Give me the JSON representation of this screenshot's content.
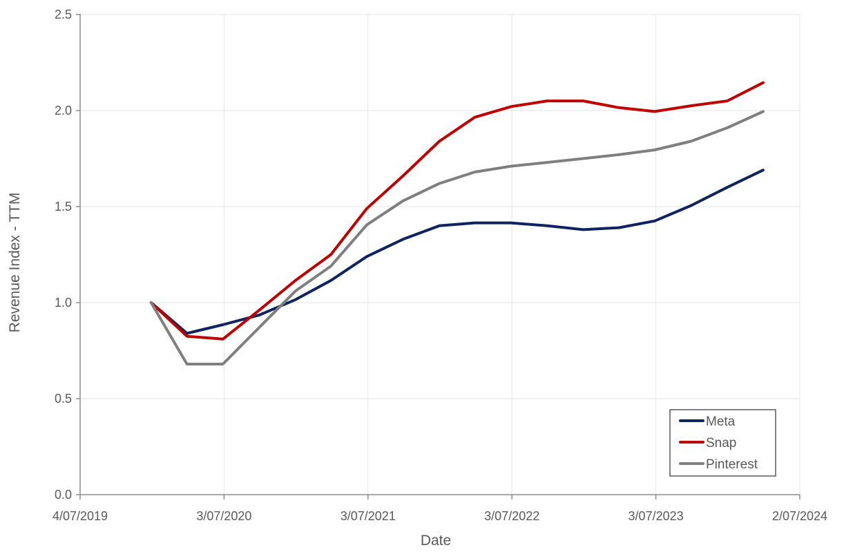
{
  "chart_data": {
    "type": "line",
    "title": "",
    "xlabel": "Date",
    "ylabel": "Revenue Index - TTM",
    "x_axis": {
      "type": "date",
      "min": "2019-07-04",
      "max": "2024-07-02",
      "ticks": [
        {
          "date": "2019-07-04",
          "label": "4/07/2019"
        },
        {
          "date": "2020-07-03",
          "label": "3/07/2020"
        },
        {
          "date": "2021-07-03",
          "label": "3/07/2021"
        },
        {
          "date": "2022-07-03",
          "label": "3/07/2022"
        },
        {
          "date": "2023-07-03",
          "label": "3/07/2023"
        },
        {
          "date": "2024-07-02",
          "label": "2/07/2024"
        }
      ]
    },
    "y_axis": {
      "min": 0,
      "max": 2.5,
      "ticks": [
        0,
        0.5,
        1,
        1.5,
        2,
        2.5
      ],
      "tick_labels": [
        "0.0",
        "0.5",
        "1.0",
        "1.5",
        "2.0",
        "2.5"
      ]
    },
    "grid": true,
    "legend": {
      "position": "bottom-right"
    },
    "x": [
      "2019-12-31",
      "2020-03-31",
      "2020-06-30",
      "2020-09-30",
      "2020-12-31",
      "2021-03-31",
      "2021-06-30",
      "2021-09-30",
      "2021-12-31",
      "2022-03-31",
      "2022-06-30",
      "2022-09-30",
      "2022-12-31",
      "2023-03-31",
      "2023-06-30",
      "2023-09-30",
      "2023-12-31",
      "2024-03-31"
    ],
    "series": [
      {
        "name": "Meta",
        "color": "#0d2461",
        "values": [
          1.0,
          0.84,
          0.885,
          0.935,
          1.015,
          1.115,
          1.24,
          1.33,
          1.4,
          1.415,
          1.415,
          1.4,
          1.38,
          1.39,
          1.425,
          1.505,
          1.6,
          1.69
        ]
      },
      {
        "name": "Snap",
        "color": "#c00000",
        "values": [
          1.0,
          0.825,
          0.81,
          0.96,
          1.115,
          1.25,
          1.49,
          1.66,
          1.84,
          1.965,
          2.02,
          2.05,
          2.05,
          2.015,
          1.995,
          2.025,
          2.05,
          2.145
        ]
      },
      {
        "name": "Pinterest",
        "color": "#7f7f7f",
        "values": [
          1.0,
          0.68,
          0.68,
          0.87,
          1.06,
          1.19,
          1.405,
          1.53,
          1.62,
          1.68,
          1.71,
          1.73,
          1.75,
          1.77,
          1.795,
          1.84,
          1.91,
          1.995
        ]
      }
    ]
  }
}
